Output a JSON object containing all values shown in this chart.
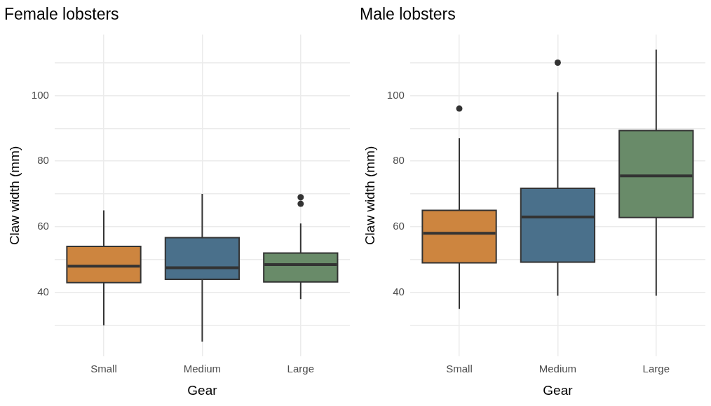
{
  "chart_data": [
    {
      "type": "box",
      "title": "Female lobsters",
      "xlabel": "Gear",
      "ylabel": "Claw width (mm)",
      "categories": [
        "Small",
        "Medium",
        "Large"
      ],
      "colors": [
        "#cd853f",
        "#4a708b",
        "#698b69"
      ],
      "boxes": [
        {
          "low": 30,
          "q1": 43,
          "median": 48,
          "q3": 54,
          "high": 65
        },
        {
          "low": 25,
          "q1": 44,
          "median": 47.5,
          "q3": 56.7,
          "high": 70
        },
        {
          "low": 38,
          "q1": 43.2,
          "median": 48.5,
          "q3": 52,
          "high": 61,
          "outliers": [
            67,
            69
          ]
        }
      ],
      "ylim": [
        20.5,
        118.5
      ],
      "yticks": [
        {
          "value": 30,
          "label": null
        },
        40,
        {
          "value": 50,
          "label": null
        },
        60,
        {
          "value": 70,
          "label": null
        },
        80,
        {
          "value": 90,
          "label": null
        },
        100,
        {
          "value": 110,
          "label": null
        }
      ],
      "grid": true
    },
    {
      "type": "box",
      "title": "Male lobsters",
      "xlabel": "Gear",
      "ylabel": "Claw width (mm)",
      "categories": [
        "Small",
        "Medium",
        "Large"
      ],
      "colors": [
        "#cd853f",
        "#4a708b",
        "#698b69"
      ],
      "boxes": [
        {
          "low": 35,
          "q1": 49,
          "median": 58,
          "q3": 65,
          "high": 87,
          "outliers": [
            96
          ]
        },
        {
          "low": 39,
          "q1": 49.2,
          "median": 63,
          "q3": 71.7,
          "high": 101,
          "outliers": [
            110
          ]
        },
        {
          "low": 39,
          "q1": 62.8,
          "median": 75.5,
          "q3": 89.3,
          "high": 114
        }
      ],
      "ylim": [
        20.5,
        118.5
      ],
      "yticks": [
        {
          "value": 30,
          "label": null
        },
        40,
        {
          "value": 50,
          "label": null
        },
        60,
        {
          "value": 70,
          "label": null
        },
        80,
        {
          "value": 90,
          "label": null
        },
        100,
        {
          "value": 110,
          "label": null
        }
      ],
      "grid": true
    }
  ]
}
